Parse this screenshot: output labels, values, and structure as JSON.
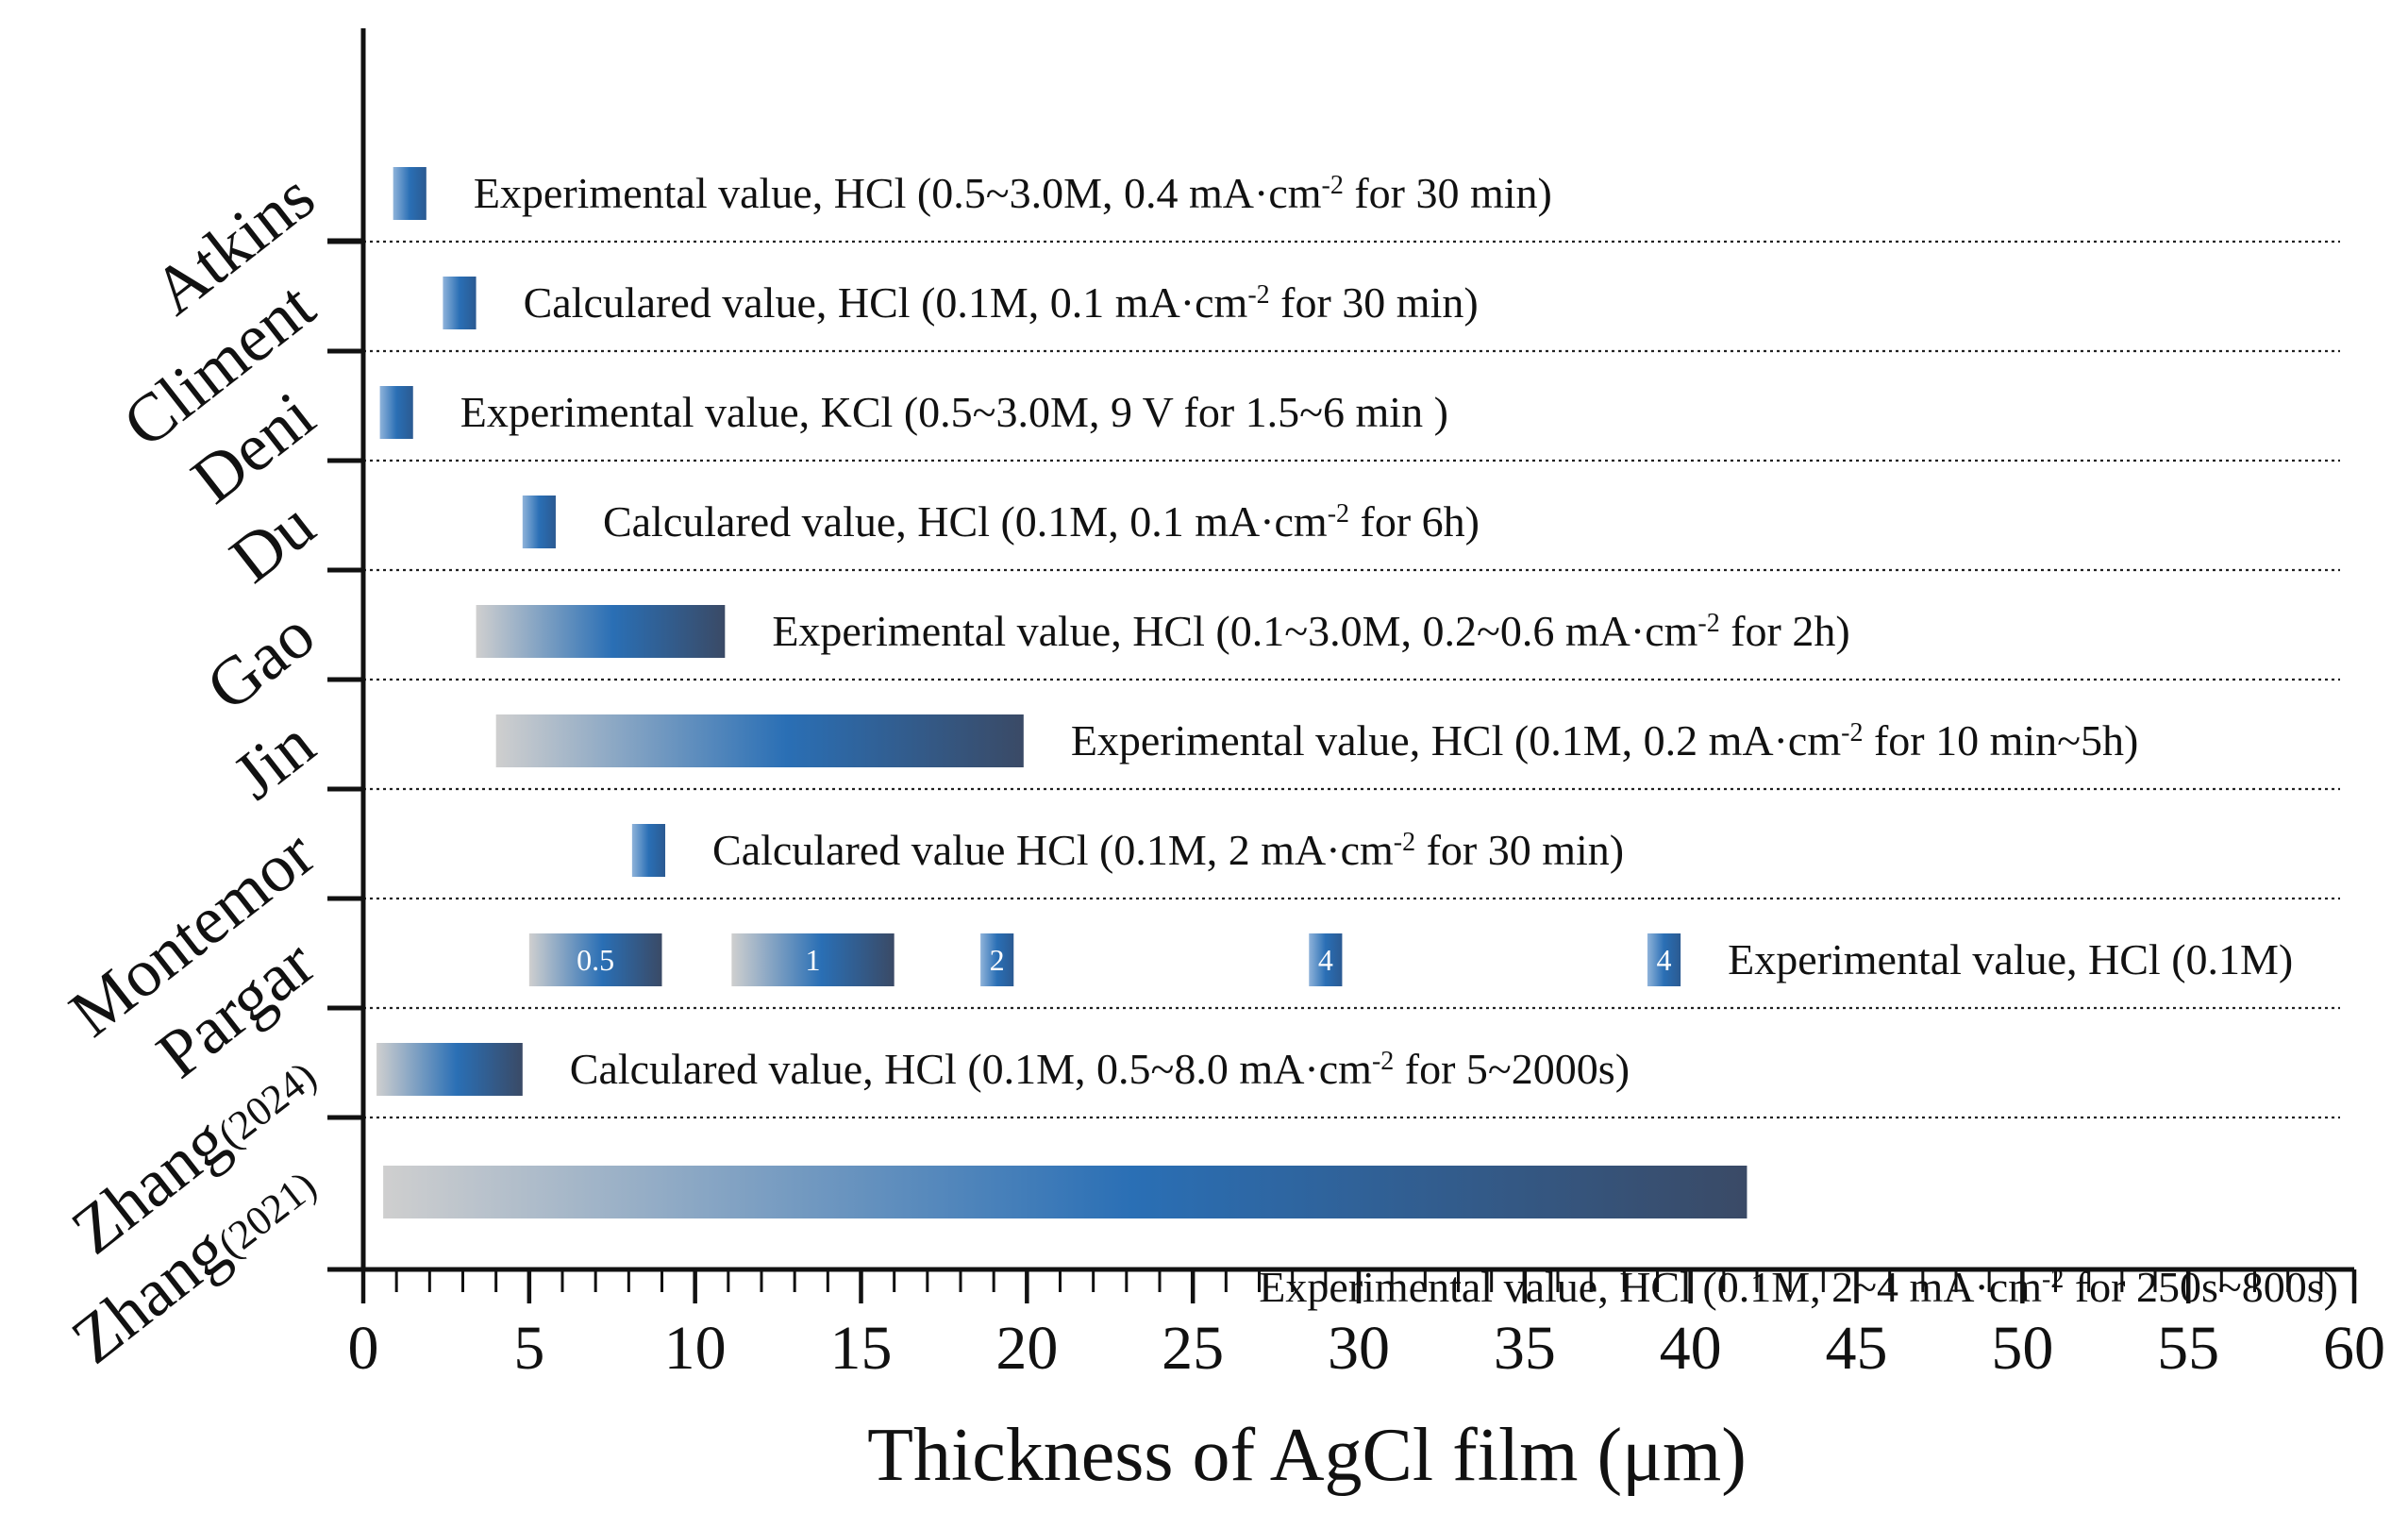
{
  "chart_data": {
    "type": "range-bar",
    "xlabel": "Thickness of AgCl film (μm)",
    "xlim": [
      0,
      60
    ],
    "x_major_ticks": [
      0,
      5,
      10,
      15,
      20,
      25,
      30,
      35,
      40,
      45,
      50,
      55,
      60
    ],
    "x_minor_step": 1,
    "colors": {
      "light": "#cfcfcf",
      "mid": "#2a6fb5",
      "dark": "#3a4a66"
    },
    "rows": [
      {
        "label": "Atkins",
        "note": "Experimental value, HCl (0.5~3.0M, 0.4 mA·cm",
        "sup": "-2",
        "note_end": " for 30 min)",
        "bars": [
          {
            "start": 0.9,
            "end": 1.9
          }
        ]
      },
      {
        "label": "Climent",
        "note": "Calculared value, HCl (0.1M, 0.1 mA·cm",
        "sup": "-2",
        "note_end": " for 30 min)",
        "bars": [
          {
            "start": 2.4,
            "end": 3.4
          }
        ]
      },
      {
        "label": "Deni",
        "note": "Experimental value, KCl (0.5~3.0M, 9 V for 1.5~6 min )",
        "sup": "",
        "note_end": "",
        "bars": [
          {
            "start": 0.5,
            "end": 1.5
          }
        ]
      },
      {
        "label": "Du",
        "note": "Calculared value, HCl (0.1M, 0.1 mA·cm",
        "sup": "-2",
        "note_end": " for 6h)",
        "bars": [
          {
            "start": 4.8,
            "end": 5.8
          }
        ]
      },
      {
        "label": "Gao",
        "note": "Experimental value, HCl (0.1~3.0M, 0.2~0.6 mA·cm",
        "sup": "-2",
        "note_end": " for 2h)",
        "bars": [
          {
            "start": 3.4,
            "end": 10.9
          }
        ]
      },
      {
        "label": "Jin",
        "note": "Experimental value, HCl (0.1M, 0.2 mA·cm",
        "sup": "-2",
        "note_end": " for 10 min~5h)",
        "bars": [
          {
            "start": 4.0,
            "end": 19.9
          }
        ]
      },
      {
        "label": "Montemor",
        "note": "Calculared value HCl (0.1M, 2 mA·cm",
        "sup": "-2",
        "note_end": " for 30 min)",
        "bars": [
          {
            "start": 8.1,
            "end": 9.1
          }
        ]
      },
      {
        "label": "Pargar",
        "note": "Experimental value, HCl (0.1M)",
        "sup": "",
        "note_end": "",
        "bars": [
          {
            "start": 5.0,
            "end": 9.0,
            "label": "0.5"
          },
          {
            "start": 11.1,
            "end": 16.0,
            "label": "1"
          },
          {
            "start": 18.6,
            "end": 19.6,
            "label": "2"
          },
          {
            "start": 28.5,
            "end": 29.5,
            "label": "4"
          },
          {
            "start": 38.7,
            "end": 39.7,
            "label": "4"
          }
        ]
      },
      {
        "label": "Zhang",
        "label_sub": "(2024)",
        "note": "Calculared value, HCl (0.1M, 0.5~8.0 mA·cm",
        "sup": "-2",
        "note_end": " for 5~2000s)",
        "bars": [
          {
            "start": 0.4,
            "end": 4.8
          }
        ]
      },
      {
        "label": "Zhang",
        "label_sub": "(2021)",
        "note": "Experimental value, HCl (0.1M, 2~4 mA·cm",
        "sup": "-2",
        "note_end": " for 250s~800s)",
        "bars": [
          {
            "start": 0.6,
            "end": 41.7
          }
        ]
      }
    ]
  }
}
